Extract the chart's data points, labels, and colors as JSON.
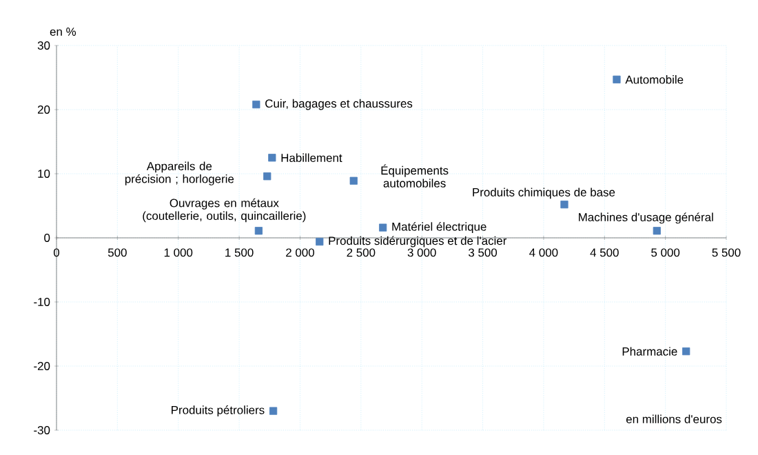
{
  "chart_data": {
    "type": "scatter",
    "marker": "square",
    "grid": true,
    "ylabel": "en %",
    "xlabel": "en millions d'euros",
    "xlim": [
      0,
      5500
    ],
    "ylim": [
      -30,
      30
    ],
    "xticks": [
      0,
      500,
      {
        "value": 1000,
        "label": "1 000"
      },
      {
        "value": 1500,
        "label": "1 500"
      },
      {
        "value": 2000,
        "label": "2 000"
      },
      {
        "value": 2500,
        "label": "2 500"
      },
      {
        "value": 3000,
        "label": "3 000"
      },
      {
        "value": 3500,
        "label": "3 500"
      },
      {
        "value": 4000,
        "label": "4 000"
      },
      {
        "value": 4500,
        "label": "4 500"
      },
      {
        "value": 5000,
        "label": "5 000"
      },
      {
        "value": 5500,
        "label": "5 500"
      }
    ],
    "yticks": [
      -30,
      -20,
      -10,
      0,
      10,
      20,
      30
    ],
    "series": [
      {
        "name": "Cuir, bagages et chaussures",
        "color": "#4f81bd",
        "x": [
          1640
        ],
        "values": [
          20.8
        ]
      },
      {
        "name": "Habillement",
        "color": "#4f81bd",
        "x": [
          1770
        ],
        "values": [
          12.5
        ]
      },
      {
        "name": "Appareils de précision ; horlogerie",
        "color": "#4f81bd",
        "x": [
          1730
        ],
        "values": [
          9.6
        ]
      },
      {
        "name": "Équipements automobiles",
        "color": "#4f81bd",
        "x": [
          2440
        ],
        "values": [
          8.9
        ]
      },
      {
        "name": "Ouvrages en métaux (coutellerie, outils, quincaillerie)",
        "color": "#4f81bd",
        "x": [
          1660
        ],
        "values": [
          1.1
        ]
      },
      {
        "name": "Produits sidérurgiques et de l'acier",
        "color": "#4f81bd",
        "x": [
          2160
        ],
        "values": [
          -0.6
        ]
      },
      {
        "name": "Matériel électrique",
        "color": "#4f81bd",
        "x": [
          2680
        ],
        "values": [
          1.6
        ]
      },
      {
        "name": "Produits chimiques de base",
        "color": "#4f81bd",
        "x": [
          4170
        ],
        "values": [
          5.2
        ]
      },
      {
        "name": "Machines d'usage général",
        "color": "#4f81bd",
        "x": [
          4930
        ],
        "values": [
          1.1
        ]
      },
      {
        "name": "Automobile",
        "color": "#4f81bd",
        "x": [
          4600
        ],
        "values": [
          24.7
        ]
      },
      {
        "name": "Pharmacie",
        "color": "#4f81bd",
        "x": [
          5170
        ],
        "values": [
          -17.7
        ]
      },
      {
        "name": "Produits pétroliers",
        "color": "#4f81bd",
        "x": [
          1780
        ],
        "values": [
          -27.0
        ]
      }
    ]
  }
}
